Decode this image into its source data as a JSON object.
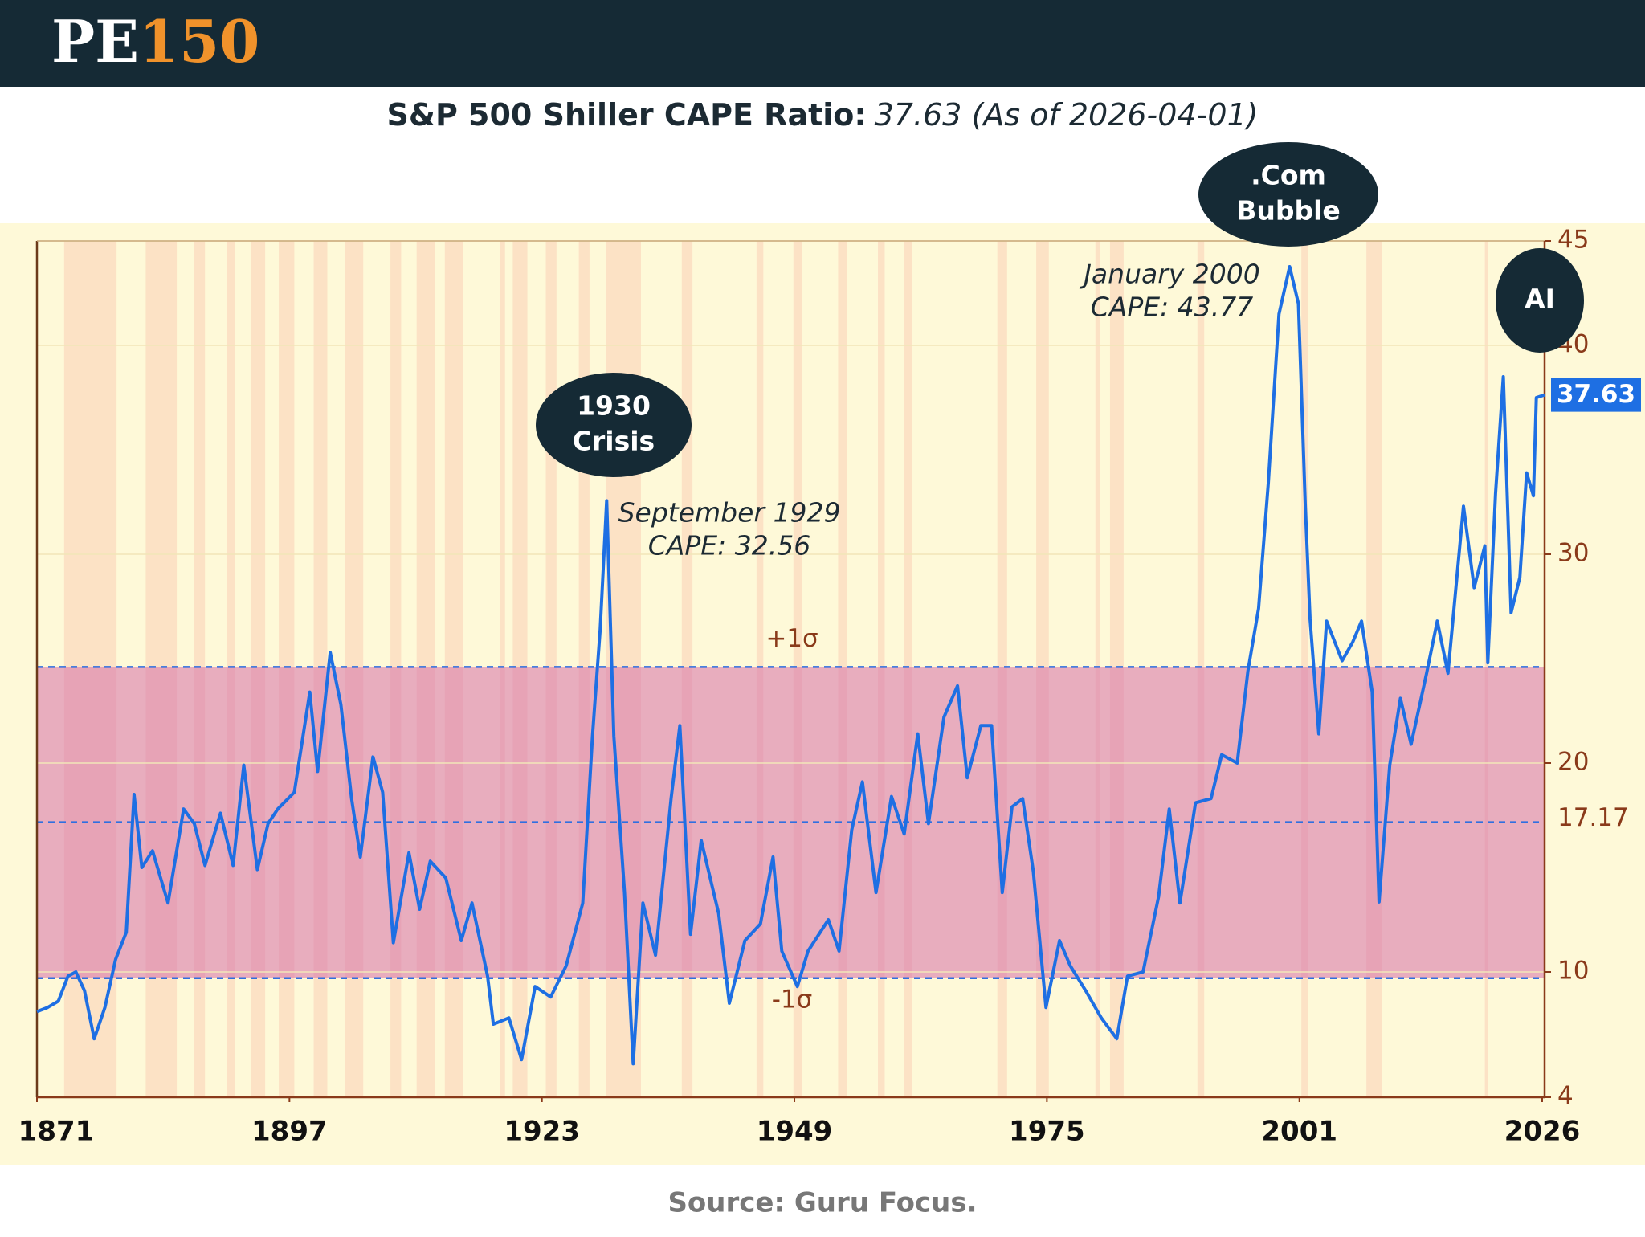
{
  "header": {
    "logo": [
      "PE",
      "150"
    ]
  },
  "chart_data": {
    "type": "line",
    "title": "S&P 500 Shiller CAPE Ratio:",
    "title_value": "37.63 (As of 2026-04-01)",
    "x": [
      1871.0,
      1872.1,
      1873.2,
      1874.2,
      1875.0,
      1875.9,
      1876.9,
      1878.0,
      1879.1,
      1880.2,
      1881.0,
      1881.8,
      1882.9,
      1884.5,
      1886.1,
      1887.2,
      1888.3,
      1889.9,
      1891.2,
      1892.3,
      1893.7,
      1894.8,
      1895.8,
      1897.5,
      1899.1,
      1899.9,
      1901.2,
      1902.3,
      1903.4,
      1904.3,
      1905.6,
      1906.6,
      1907.7,
      1909.3,
      1910.4,
      1911.5,
      1913.1,
      1914.7,
      1915.8,
      1917.4,
      1918.0,
      1919.6,
      1920.9,
      1922.3,
      1923.9,
      1925.5,
      1927.2,
      1928.2,
      1929.0,
      1929.67,
      1930.4,
      1931.5,
      1932.4,
      1933.4,
      1934.7,
      1936.3,
      1937.2,
      1938.3,
      1939.4,
      1941.2,
      1942.3,
      1943.9,
      1945.5,
      1946.8,
      1947.7,
      1949.3,
      1950.4,
      1952.5,
      1953.6,
      1954.9,
      1956.0,
      1957.4,
      1959.0,
      1960.3,
      1961.7,
      1962.8,
      1964.4,
      1965.8,
      1966.8,
      1968.2,
      1969.3,
      1970.4,
      1971.4,
      1972.5,
      1973.6,
      1974.9,
      1976.3,
      1977.4,
      1979.0,
      1980.6,
      1982.2,
      1983.3,
      1984.9,
      1986.5,
      1987.6,
      1988.7,
      1990.3,
      1991.9,
      1993.0,
      1994.6,
      1995.7,
      1996.8,
      1997.8,
      1998.9,
      2000.0,
      2000.9,
      2001.6,
      2002.1,
      2003.0,
      2003.8,
      2005.4,
      2006.5,
      2007.4,
      2008.5,
      2009.2,
      2010.3,
      2011.4,
      2012.5,
      2014.1,
      2015.2,
      2016.3,
      2017.9,
      2019.0,
      2020.1,
      2020.4,
      2021.2,
      2022.0,
      2022.8,
      2023.7,
      2024.4,
      2025.1,
      2025.4,
      2026.25
    ],
    "values": [
      8.1,
      8.3,
      8.6,
      9.8,
      10.0,
      9.1,
      6.8,
      8.3,
      10.6,
      11.9,
      18.5,
      15.0,
      15.8,
      13.3,
      17.8,
      17.1,
      15.1,
      17.6,
      15.1,
      19.9,
      14.9,
      17.1,
      17.8,
      18.6,
      23.4,
      19.6,
      25.3,
      22.8,
      18.3,
      15.5,
      20.3,
      18.6,
      11.4,
      15.7,
      13.0,
      15.3,
      14.5,
      11.5,
      13.3,
      9.8,
      7.5,
      7.8,
      5.8,
      9.3,
      8.8,
      10.3,
      13.3,
      21.3,
      26.4,
      32.56,
      21.3,
      13.8,
      5.6,
      13.3,
      10.8,
      18.3,
      21.8,
      11.8,
      16.3,
      12.8,
      8.5,
      11.5,
      12.3,
      15.5,
      11.0,
      9.3,
      11.0,
      12.5,
      11.0,
      16.8,
      19.1,
      13.8,
      18.4,
      16.6,
      21.4,
      17.1,
      22.2,
      23.7,
      19.3,
      21.8,
      21.8,
      13.8,
      17.9,
      18.3,
      14.8,
      8.3,
      11.5,
      10.3,
      9.1,
      7.8,
      6.8,
      9.8,
      10.0,
      13.6,
      17.8,
      13.3,
      18.1,
      18.3,
      20.4,
      20.0,
      24.4,
      27.4,
      33.4,
      41.5,
      43.77,
      42.0,
      32.4,
      26.9,
      21.4,
      26.8,
      24.9,
      25.8,
      26.8,
      23.4,
      13.35,
      19.9,
      23.1,
      20.9,
      24.3,
      26.8,
      24.3,
      32.3,
      28.4,
      30.4,
      24.8,
      32.9,
      38.5,
      27.2,
      28.9,
      33.9,
      32.8,
      37.5,
      37.63
    ],
    "color": "#1e6fe3",
    "xlim": [
      1871,
      2026.25
    ],
    "xticks": [
      1871,
      1897,
      1923,
      1949,
      1975,
      2001,
      2026
    ],
    "ylim": [
      4,
      45
    ],
    "yticks": [
      4,
      10,
      20,
      30,
      40,
      45
    ],
    "grid": true,
    "mean": 17.17,
    "sigma_bands": [
      {
        "label": "+1σ",
        "value": 24.6
      },
      {
        "label": "-1σ",
        "value": 9.7
      }
    ],
    "current": 37.63,
    "shaded_periods": [
      [
        1873.8,
        1879.2
      ],
      [
        1882.2,
        1885.4
      ],
      [
        1887.2,
        1888.3
      ],
      [
        1890.6,
        1891.4
      ],
      [
        1893.0,
        1894.5
      ],
      [
        1895.9,
        1897.5
      ],
      [
        1899.5,
        1900.9
      ],
      [
        1902.7,
        1904.6
      ],
      [
        1907.4,
        1908.5
      ],
      [
        1910.1,
        1912.0
      ],
      [
        1913.0,
        1914.9
      ],
      [
        1918.7,
        1919.2
      ],
      [
        1920.0,
        1921.5
      ],
      [
        1923.4,
        1924.5
      ],
      [
        1926.8,
        1927.9
      ],
      [
        1929.6,
        1933.2
      ],
      [
        1937.4,
        1938.5
      ],
      [
        1945.1,
        1945.8
      ],
      [
        1948.9,
        1949.8
      ],
      [
        1953.5,
        1954.4
      ],
      [
        1957.6,
        1958.3
      ],
      [
        1960.3,
        1961.1
      ],
      [
        1969.9,
        1970.9
      ],
      [
        1973.9,
        1975.2
      ],
      [
        1980.0,
        1980.5
      ],
      [
        1981.5,
        1982.9
      ],
      [
        1990.5,
        1991.2
      ],
      [
        2001.2,
        2001.9
      ],
      [
        2007.9,
        2009.5
      ],
      [
        2020.1,
        2020.4
      ]
    ],
    "bubbles": [
      [
        "1930",
        "Crisis"
      ],
      [
        ".Com",
        "Bubble"
      ],
      [
        "AI"
      ]
    ],
    "annotations": [
      [
        "September 1929",
        "CAPE: 32.56"
      ],
      [
        "January 2000",
        "CAPE: 43.77"
      ]
    ]
  },
  "footer": {
    "source": "Source: Guru Focus."
  }
}
